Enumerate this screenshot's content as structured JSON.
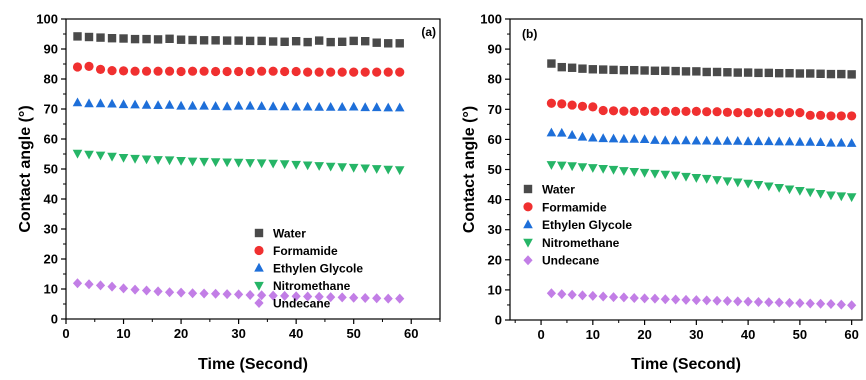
{
  "colors": {
    "Water": "#4a4a4a",
    "Formamide": "#f03030",
    "Ethylen Glycole": "#1e6fd9",
    "Nitromethane": "#26b567",
    "Undecane": "#c27ee6"
  },
  "chart_data": [
    {
      "type": "scatter",
      "panel_label": "(a)",
      "xlabel": "Time (Second)",
      "ylabel": "Contact angle (°)",
      "xlim": [
        0,
        65
      ],
      "ylim": [
        0,
        100
      ],
      "xticks": [
        0,
        10,
        20,
        30,
        40,
        50,
        60
      ],
      "yticks": [
        0,
        10,
        20,
        30,
        40,
        50,
        60,
        70,
        80,
        90,
        100
      ],
      "legend_position": "center-right",
      "x": [
        2,
        4,
        6,
        8,
        10,
        12,
        14,
        16,
        18,
        20,
        22,
        24,
        26,
        28,
        30,
        32,
        34,
        36,
        38,
        40,
        42,
        44,
        46,
        48,
        50,
        52,
        54,
        56,
        58
      ],
      "series": [
        {
          "name": "Water",
          "marker": "square",
          "values": [
            94.2,
            94.0,
            93.8,
            93.6,
            93.5,
            93.3,
            93.3,
            93.2,
            93.4,
            93.1,
            93.0,
            92.9,
            92.9,
            92.8,
            92.8,
            92.7,
            92.7,
            92.5,
            92.4,
            92.6,
            92.3,
            92.8,
            92.3,
            92.4,
            92.7,
            92.6,
            92.1,
            91.9,
            91.9
          ]
        },
        {
          "name": "Formamide",
          "marker": "circle",
          "values": [
            84.0,
            84.2,
            83.2,
            82.8,
            82.7,
            82.6,
            82.6,
            82.6,
            82.6,
            82.5,
            82.6,
            82.6,
            82.5,
            82.5,
            82.5,
            82.5,
            82.6,
            82.6,
            82.5,
            82.5,
            82.3,
            82.3,
            82.3,
            82.3,
            82.3,
            82.3,
            82.3,
            82.3,
            82.3
          ]
        },
        {
          "name": "Ethylen Glycole",
          "marker": "triangle-up",
          "values": [
            72.1,
            71.8,
            71.8,
            71.7,
            71.5,
            71.4,
            71.3,
            71.2,
            71.3,
            71.0,
            71.0,
            71.0,
            70.9,
            70.8,
            71.0,
            71.0,
            70.9,
            70.8,
            70.8,
            70.7,
            70.7,
            70.6,
            70.6,
            70.6,
            70.7,
            70.5,
            70.5,
            70.4,
            70.4
          ]
        },
        {
          "name": "Nitromethane",
          "marker": "triangle-down",
          "values": [
            55.2,
            54.9,
            54.6,
            54.2,
            53.8,
            53.5,
            53.3,
            53.1,
            53.0,
            52.8,
            52.6,
            52.5,
            52.4,
            52.3,
            52.2,
            52.1,
            52.0,
            51.9,
            51.7,
            51.5,
            51.3,
            51.1,
            50.9,
            50.7,
            50.5,
            50.3,
            50.1,
            49.9,
            49.7
          ]
        },
        {
          "name": "Undecane",
          "marker": "diamond",
          "values": [
            11.9,
            11.6,
            11.2,
            10.8,
            10.2,
            9.8,
            9.5,
            9.2,
            8.9,
            8.8,
            8.6,
            8.5,
            8.4,
            8.3,
            8.2,
            8.0,
            7.9,
            7.8,
            7.7,
            7.6,
            7.5,
            7.4,
            7.3,
            7.2,
            7.1,
            7.0,
            6.9,
            6.8,
            6.8
          ]
        }
      ]
    },
    {
      "type": "scatter",
      "panel_label": "(b)",
      "xlabel": "Time (Second)",
      "ylabel": "Contact angle (°)",
      "xlim": [
        -6,
        62
      ],
      "ylim": [
        0,
        100
      ],
      "xticks": [
        0,
        10,
        20,
        30,
        40,
        50,
        60
      ],
      "yticks": [
        0,
        10,
        20,
        30,
        40,
        50,
        60,
        70,
        80,
        90,
        100
      ],
      "legend_position": "left-middle",
      "x": [
        2,
        4,
        6,
        8,
        10,
        12,
        14,
        16,
        18,
        20,
        22,
        24,
        26,
        28,
        30,
        32,
        34,
        36,
        38,
        40,
        42,
        44,
        46,
        48,
        50,
        52,
        54,
        56,
        58,
        60
      ],
      "series": [
        {
          "name": "Water",
          "marker": "square",
          "values": [
            85.2,
            84.0,
            83.8,
            83.5,
            83.3,
            83.2,
            83.1,
            83.0,
            83.0,
            82.9,
            82.8,
            82.8,
            82.7,
            82.6,
            82.6,
            82.4,
            82.4,
            82.3,
            82.2,
            82.2,
            82.1,
            82.1,
            82.0,
            82.0,
            81.9,
            81.9,
            81.8,
            81.7,
            81.7,
            81.6
          ]
        },
        {
          "name": "Formamide",
          "marker": "circle",
          "values": [
            72.0,
            71.8,
            71.4,
            71.0,
            70.8,
            69.6,
            69.5,
            69.4,
            69.3,
            69.3,
            69.3,
            69.3,
            69.3,
            69.3,
            69.3,
            69.2,
            69.2,
            69.0,
            68.9,
            68.9,
            68.9,
            68.9,
            68.9,
            68.9,
            68.9,
            68.0,
            68.0,
            67.8,
            67.8,
            67.8
          ]
        },
        {
          "name": "Ethylen Glycole",
          "marker": "triangle-up",
          "values": [
            62.2,
            62.1,
            61.4,
            60.8,
            60.5,
            60.3,
            60.2,
            60.1,
            60.1,
            60.0,
            59.7,
            59.6,
            59.6,
            59.6,
            59.5,
            59.5,
            59.4,
            59.4,
            59.4,
            59.3,
            59.3,
            59.3,
            59.2,
            59.2,
            59.1,
            59.1,
            59.0,
            58.8,
            58.8,
            58.7
          ]
        },
        {
          "name": "Nitromethane",
          "marker": "triangle-down",
          "values": [
            51.6,
            51.4,
            51.2,
            50.9,
            50.6,
            50.3,
            50.0,
            49.6,
            49.3,
            49.0,
            48.7,
            48.4,
            48.1,
            47.7,
            47.3,
            47.0,
            46.6,
            46.2,
            45.8,
            45.4,
            45.0,
            44.5,
            44.0,
            43.5,
            43.0,
            42.5,
            42.0,
            41.5,
            41.2,
            40.9
          ]
        },
        {
          "name": "Undecane",
          "marker": "diamond",
          "values": [
            8.9,
            8.6,
            8.4,
            8.2,
            8.0,
            7.8,
            7.6,
            7.5,
            7.3,
            7.2,
            7.1,
            6.9,
            6.8,
            6.7,
            6.6,
            6.5,
            6.4,
            6.3,
            6.2,
            6.1,
            6.0,
            5.9,
            5.8,
            5.7,
            5.6,
            5.5,
            5.4,
            5.3,
            5.1,
            4.9
          ]
        }
      ]
    }
  ]
}
